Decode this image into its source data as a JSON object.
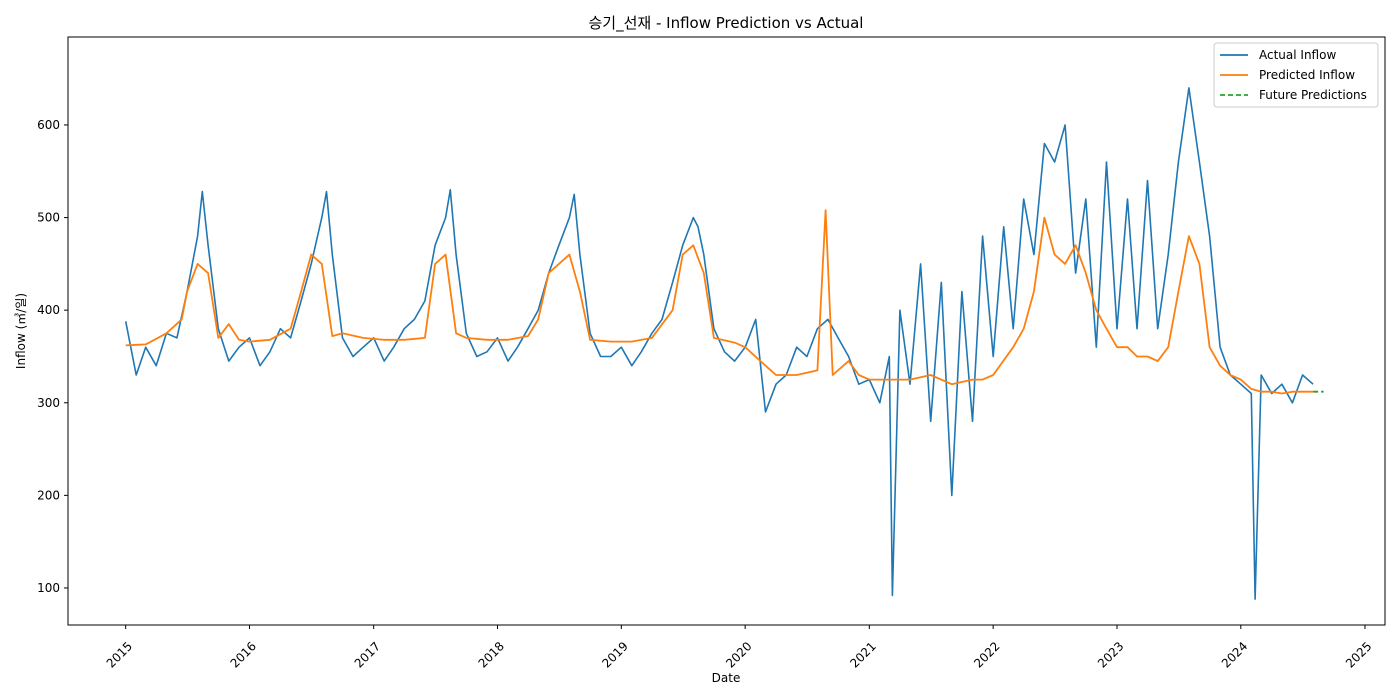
{
  "chart_data": {
    "type": "line",
    "title": "승기_선재 - Inflow Prediction vs Actual",
    "xlabel": "Date",
    "ylabel": "Inflow (㎥/일)",
    "x_type": "date",
    "xlim": [
      "2014-07-15",
      "2025-03-01"
    ],
    "ylim": [
      60,
      695
    ],
    "x_ticks": [
      "2015",
      "2016",
      "2017",
      "2018",
      "2019",
      "2020",
      "2021",
      "2022",
      "2023",
      "2024",
      "2025"
    ],
    "y_ticks": [
      100,
      200,
      300,
      400,
      500,
      600
    ],
    "grid": false,
    "legend_position": "top-right",
    "series": [
      {
        "name": "Actual Inflow",
        "color": "#1f77b4",
        "style": "solid",
        "x": [
          "2015-01-01",
          "2015-02-01",
          "2015-03-01",
          "2015-04-01",
          "2015-05-01",
          "2015-06-01",
          "2015-07-01",
          "2015-08-01",
          "2015-08-15",
          "2015-09-01",
          "2015-10-01",
          "2015-11-01",
          "2015-12-01",
          "2016-01-01",
          "2016-02-01",
          "2016-03-01",
          "2016-04-01",
          "2016-05-01",
          "2016-06-01",
          "2016-07-01",
          "2016-08-01",
          "2016-08-15",
          "2016-09-01",
          "2016-10-01",
          "2016-11-01",
          "2016-12-01",
          "2017-01-01",
          "2017-02-01",
          "2017-03-01",
          "2017-04-01",
          "2017-05-01",
          "2017-06-01",
          "2017-07-01",
          "2017-08-01",
          "2017-08-15",
          "2017-09-01",
          "2017-10-01",
          "2017-11-01",
          "2017-12-01",
          "2018-01-01",
          "2018-02-01",
          "2018-03-01",
          "2018-04-01",
          "2018-05-01",
          "2018-06-01",
          "2018-07-01",
          "2018-08-01",
          "2018-08-15",
          "2018-09-01",
          "2018-10-01",
          "2018-11-01",
          "2018-12-01",
          "2019-01-01",
          "2019-02-01",
          "2019-03-01",
          "2019-04-01",
          "2019-05-01",
          "2019-06-01",
          "2019-07-01",
          "2019-08-01",
          "2019-08-15",
          "2019-09-01",
          "2019-10-01",
          "2019-11-01",
          "2019-12-01",
          "2020-01-01",
          "2020-02-01",
          "2020-03-01",
          "2020-04-01",
          "2020-05-01",
          "2020-06-01",
          "2020-07-01",
          "2020-08-01",
          "2020-09-01",
          "2020-10-01",
          "2020-11-01",
          "2020-12-01",
          "2021-01-01",
          "2021-02-01",
          "2021-03-01",
          "2021-03-10",
          "2021-04-01",
          "2021-05-01",
          "2021-06-01",
          "2021-07-01",
          "2021-08-01",
          "2021-09-01",
          "2021-10-01",
          "2021-11-01",
          "2021-12-01",
          "2022-01-01",
          "2022-02-01",
          "2022-03-01",
          "2022-04-01",
          "2022-05-01",
          "2022-06-01",
          "2022-07-01",
          "2022-08-01",
          "2022-09-01",
          "2022-10-01",
          "2022-11-01",
          "2022-12-01",
          "2023-01-01",
          "2023-02-01",
          "2023-03-01",
          "2023-04-01",
          "2023-05-01",
          "2023-06-01",
          "2023-07-01",
          "2023-08-01",
          "2023-09-01",
          "2023-10-01",
          "2023-11-01",
          "2023-12-01",
          "2024-01-01",
          "2024-02-01",
          "2024-02-12",
          "2024-03-01",
          "2024-04-01",
          "2024-05-01",
          "2024-06-01",
          "2024-07-01",
          "2024-08-01"
        ],
        "y": [
          388,
          330,
          360,
          340,
          375,
          370,
          420,
          480,
          528,
          470,
          380,
          345,
          360,
          370,
          340,
          355,
          380,
          370,
          410,
          450,
          500,
          528,
          460,
          370,
          350,
          360,
          370,
          345,
          360,
          380,
          390,
          410,
          470,
          500,
          530,
          460,
          375,
          350,
          355,
          370,
          345,
          360,
          380,
          400,
          440,
          470,
          500,
          525,
          460,
          375,
          350,
          350,
          360,
          340,
          355,
          375,
          390,
          430,
          470,
          500,
          490,
          460,
          380,
          355,
          345,
          360,
          390,
          290,
          320,
          330,
          360,
          350,
          380,
          390,
          370,
          350,
          320,
          325,
          300,
          350,
          92,
          400,
          320,
          450,
          280,
          430,
          200,
          420,
          280,
          480,
          350,
          490,
          380,
          520,
          460,
          580,
          560,
          600,
          440,
          520,
          360,
          560,
          380,
          520,
          380,
          540,
          380,
          460,
          560,
          640,
          560,
          480,
          360,
          330,
          320,
          310,
          88,
          330,
          310,
          320,
          300,
          330,
          320
        ]
      },
      {
        "name": "Predicted Inflow",
        "color": "#ff7f0e",
        "style": "solid",
        "x": [
          "2015-01-01",
          "2015-03-01",
          "2015-05-01",
          "2015-06-15",
          "2015-07-01",
          "2015-08-01",
          "2015-09-01",
          "2015-10-01",
          "2015-11-01",
          "2015-12-01",
          "2016-01-01",
          "2016-03-01",
          "2016-05-01",
          "2016-06-01",
          "2016-07-01",
          "2016-08-01",
          "2016-09-01",
          "2016-10-01",
          "2016-12-01",
          "2017-02-01",
          "2017-04-01",
          "2017-06-01",
          "2017-07-01",
          "2017-08-01",
          "2017-09-01",
          "2017-10-01",
          "2017-12-01",
          "2018-02-01",
          "2018-04-01",
          "2018-05-01",
          "2018-06-01",
          "2018-07-01",
          "2018-08-01",
          "2018-09-01",
          "2018-10-01",
          "2018-12-01",
          "2019-02-01",
          "2019-04-01",
          "2019-06-01",
          "2019-07-01",
          "2019-08-01",
          "2019-09-01",
          "2019-10-01",
          "2019-12-01",
          "2020-01-01",
          "2020-03-01",
          "2020-04-01",
          "2020-06-01",
          "2020-08-01",
          "2020-08-25",
          "2020-09-15",
          "2020-11-01",
          "2020-12-01",
          "2021-01-01",
          "2021-03-01",
          "2021-05-01",
          "2021-07-01",
          "2021-09-01",
          "2021-11-01",
          "2021-12-01",
          "2022-01-01",
          "2022-03-01",
          "2022-04-01",
          "2022-05-01",
          "2022-06-01",
          "2022-07-01",
          "2022-08-01",
          "2022-09-01",
          "2022-10-01",
          "2022-11-01",
          "2022-12-01",
          "2023-01-01",
          "2023-02-01",
          "2023-03-01",
          "2023-04-01",
          "2023-05-01",
          "2023-06-01",
          "2023-07-01",
          "2023-08-01",
          "2023-09-01",
          "2023-10-01",
          "2023-11-01",
          "2023-12-01",
          "2024-01-01",
          "2024-02-01",
          "2024-03-01",
          "2024-04-01",
          "2024-05-01",
          "2024-06-01",
          "2024-07-01",
          "2024-08-01"
        ],
        "y": [
          362,
          363,
          375,
          390,
          420,
          450,
          440,
          370,
          385,
          368,
          366,
          368,
          380,
          420,
          460,
          450,
          372,
          375,
          370,
          368,
          368,
          370,
          450,
          460,
          375,
          370,
          368,
          368,
          372,
          390,
          440,
          450,
          460,
          420,
          368,
          366,
          366,
          370,
          400,
          460,
          470,
          440,
          370,
          365,
          360,
          340,
          330,
          330,
          335,
          508,
          330,
          345,
          330,
          325,
          325,
          325,
          330,
          320,
          325,
          325,
          330,
          360,
          380,
          420,
          500,
          460,
          450,
          470,
          440,
          400,
          380,
          360,
          360,
          350,
          350,
          345,
          360,
          420,
          480,
          450,
          360,
          340,
          330,
          325,
          315,
          312,
          312,
          310,
          312,
          312,
          312
        ]
      },
      {
        "name": "Future Predictions",
        "color": "#2ca02c",
        "style": "dashed",
        "x": [
          "2024-08-01",
          "2024-08-15",
          "2024-09-01"
        ],
        "y": [
          312,
          312,
          312
        ]
      }
    ]
  }
}
